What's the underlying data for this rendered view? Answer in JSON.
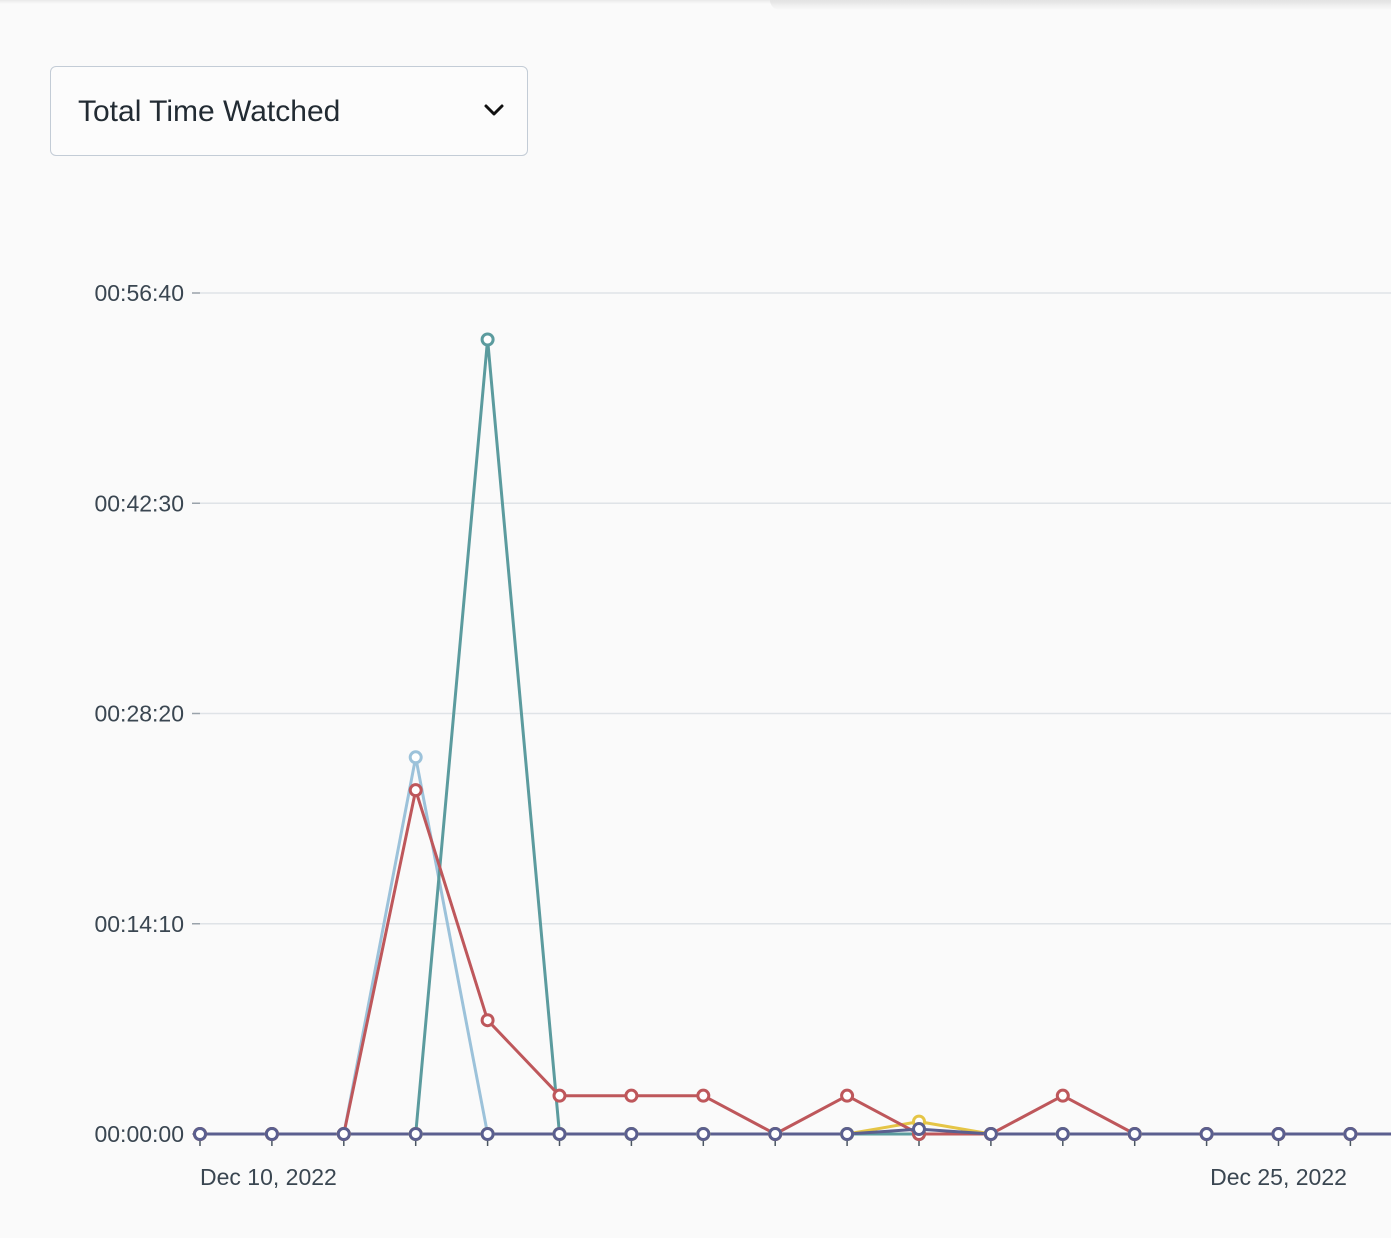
{
  "metric_select": {
    "selected": "Total Time Watched"
  },
  "icons": {
    "select_arrow": "chevron-down-icon"
  },
  "chart_data": {
    "type": "line",
    "x_tick_labels": [
      "Dec 10, 2022",
      "Dec 25, 2022"
    ],
    "x": [
      "2022-12-10",
      "2022-12-11",
      "2022-12-12",
      "2022-12-13",
      "2022-12-14",
      "2022-12-15",
      "2022-12-16",
      "2022-12-17",
      "2022-12-18",
      "2022-12-19",
      "2022-12-20",
      "2022-12-21",
      "2022-12-22",
      "2022-12-23",
      "2022-12-24",
      "2022-12-25",
      "2022-12-26"
    ],
    "y_tick_labels": [
      "00:00:00",
      "00:14:10",
      "00:28:20",
      "00:42:30",
      "00:56:40"
    ],
    "y_unit": "seconds",
    "ylim": [
      0,
      3400
    ],
    "grid": true,
    "legend": "none",
    "series": [
      {
        "color": "#9cc2da",
        "values": [
          0,
          0,
          0,
          1523,
          0,
          0,
          0,
          0,
          0,
          0,
          0,
          0,
          0,
          0,
          0,
          0,
          0
        ]
      },
      {
        "color": "#5b9b9e",
        "values": [
          0,
          0,
          0,
          0,
          3212,
          0,
          0,
          0,
          0,
          0,
          0,
          0,
          0,
          0,
          0,
          0,
          0
        ]
      },
      {
        "color": "#e5c546",
        "values": [
          0,
          0,
          0,
          0,
          0,
          0,
          0,
          0,
          0,
          0,
          50,
          0,
          0,
          0,
          0,
          0,
          0
        ]
      },
      {
        "color": "#be575b",
        "values": [
          0,
          0,
          0,
          1390,
          460,
          155,
          155,
          155,
          0,
          155,
          0,
          0,
          155,
          0,
          0,
          0,
          0
        ]
      },
      {
        "color": "#5b5f8f",
        "values": [
          0,
          0,
          0,
          0,
          0,
          0,
          0,
          0,
          0,
          0,
          20,
          0,
          0,
          0,
          0,
          0,
          0
        ]
      }
    ]
  }
}
